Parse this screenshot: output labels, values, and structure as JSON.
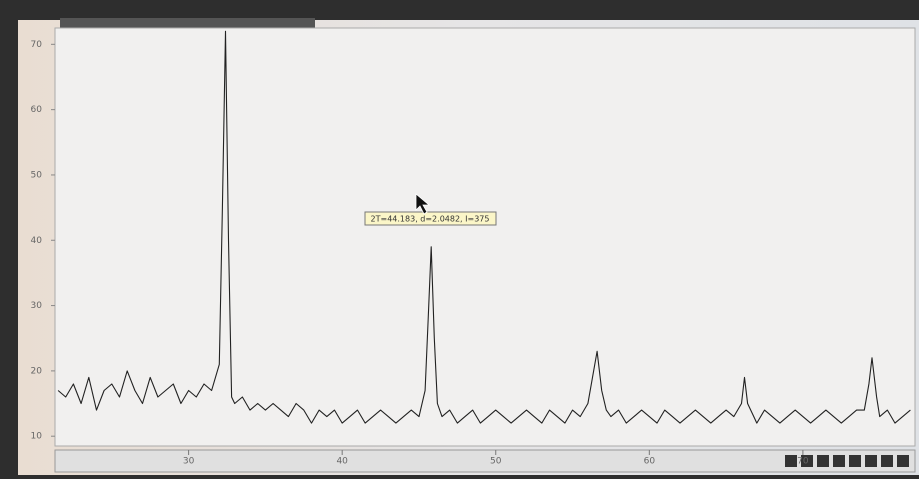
{
  "chart_data": {
    "type": "line",
    "annotation": "2T=44.183, d=2.0482, I=375",
    "x": [
      21.5,
      22,
      22.5,
      23,
      23.5,
      24,
      24.5,
      25,
      25.5,
      26,
      26.5,
      27,
      27.5,
      28,
      28.5,
      29,
      29.5,
      30,
      30.5,
      31,
      31.5,
      32,
      32.2,
      32.4,
      32.6,
      32.8,
      33,
      33.5,
      34,
      34.5,
      35,
      35.5,
      36,
      36.5,
      37,
      37.5,
      38,
      38.5,
      39,
      39.5,
      40,
      40.5,
      41,
      41.5,
      42,
      42.5,
      43,
      43.5,
      44,
      44.5,
      45,
      45.4,
      45.6,
      45.8,
      46,
      46.2,
      46.5,
      47,
      47.5,
      48,
      48.5,
      49,
      49.5,
      50,
      50.5,
      51,
      51.5,
      52,
      52.5,
      53,
      53.5,
      54,
      54.5,
      55,
      55.5,
      56,
      56.3,
      56.6,
      56.9,
      57.2,
      57.5,
      58,
      58.5,
      59,
      59.5,
      60,
      60.5,
      61,
      61.5,
      62,
      62.5,
      63,
      63.5,
      64,
      64.5,
      65,
      65.5,
      66,
      66.2,
      66.4,
      66.8,
      67,
      67.5,
      68,
      68.5,
      69,
      69.5,
      70,
      70.5,
      71,
      71.5,
      72,
      72.5,
      73,
      73.5,
      74,
      74.3,
      74.5,
      74.8,
      75,
      75.5,
      76,
      76.5,
      77
    ],
    "series": [
      {
        "color": "#222222",
        "values": [
          17,
          16,
          18,
          15,
          19,
          14,
          17,
          18,
          16,
          20,
          17,
          15,
          19,
          16,
          17,
          18,
          15,
          17,
          16,
          18,
          17,
          21,
          45,
          72,
          40,
          16,
          15,
          16,
          14,
          15,
          14,
          15,
          14,
          13,
          15,
          14,
          12,
          14,
          13,
          14,
          12,
          13,
          14,
          12,
          13,
          14,
          13,
          12,
          13,
          14,
          13,
          17,
          28,
          39,
          25,
          15,
          13,
          14,
          12,
          13,
          14,
          12,
          13,
          14,
          13,
          12,
          13,
          14,
          13,
          12,
          14,
          13,
          12,
          14,
          13,
          15,
          19,
          23,
          17,
          14,
          13,
          14,
          12,
          13,
          14,
          13,
          12,
          14,
          13,
          12,
          13,
          14,
          13,
          12,
          13,
          14,
          13,
          15,
          19,
          15,
          13,
          12,
          14,
          13,
          12,
          13,
          14,
          13,
          12,
          13,
          14,
          13,
          12,
          13,
          14,
          14,
          18,
          22,
          16,
          13,
          14,
          12,
          13,
          14
        ]
      }
    ],
    "xlim": [
      21.3,
      77.3
    ],
    "xticks": [
      30,
      40,
      50,
      60,
      70
    ],
    "ylim": [
      8.5,
      72.5
    ],
    "yticks": [
      10,
      20,
      30,
      40,
      50,
      60,
      70
    ]
  }
}
